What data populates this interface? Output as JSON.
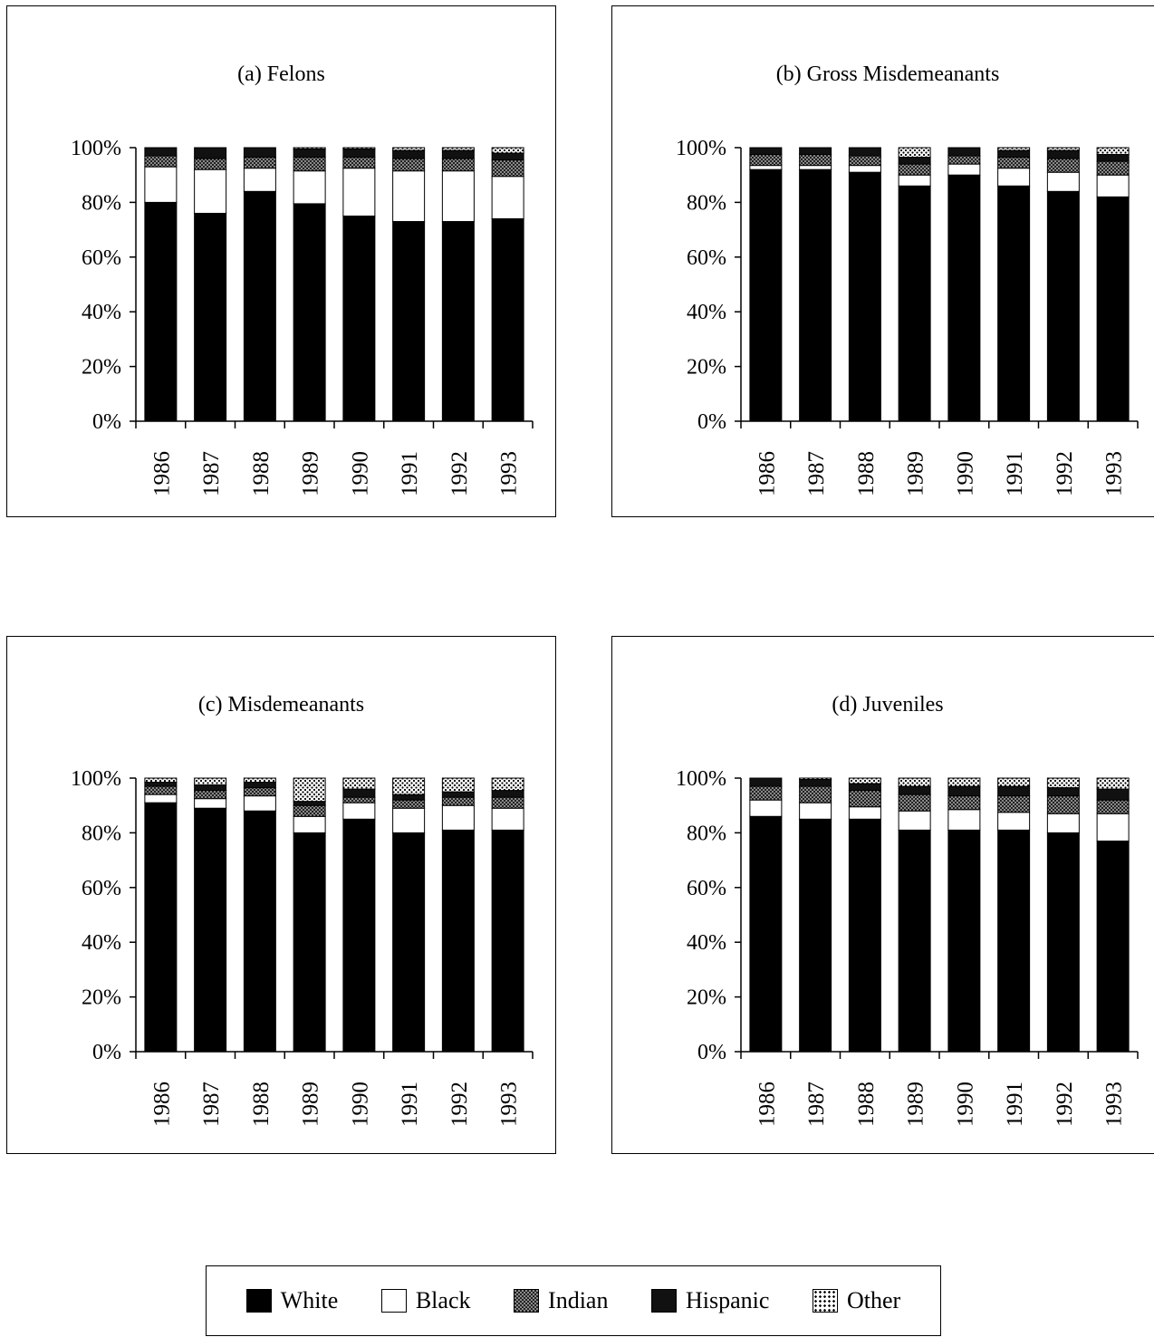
{
  "chart_data": [
    {
      "type": "bar",
      "stacked": true,
      "title": "(a) Felons",
      "categories": [
        "1986",
        "1987",
        "1988",
        "1989",
        "1990",
        "1991",
        "1992",
        "1993"
      ],
      "ylim": [
        0,
        100
      ],
      "yticks": [
        "0%",
        "20%",
        "40%",
        "60%",
        "80%",
        "100%"
      ],
      "series": [
        {
          "name": "White",
          "values": [
            80,
            76,
            84,
            79.5,
            75,
            73,
            73,
            74
          ]
        },
        {
          "name": "Black",
          "values": [
            13,
            16,
            8.5,
            12,
            17.5,
            18.5,
            18.5,
            15.5
          ]
        },
        {
          "name": "Indian",
          "values": [
            4,
            4,
            4,
            5,
            4,
            4.5,
            4.5,
            6
          ]
        },
        {
          "name": "Hispanic",
          "values": [
            3,
            4,
            3.5,
            3,
            3,
            3,
            3,
            2.5
          ]
        },
        {
          "name": "Other",
          "values": [
            0,
            0,
            0,
            0.5,
            0.5,
            1,
            1,
            2
          ]
        }
      ]
    },
    {
      "type": "bar",
      "stacked": true,
      "title": "(b) Gross Misdemeanants",
      "categories": [
        "1986",
        "1987",
        "1988",
        "1989",
        "1990",
        "1991",
        "1992",
        "1993"
      ],
      "ylim": [
        0,
        100
      ],
      "yticks": [
        "0%",
        "20%",
        "40%",
        "60%",
        "80%",
        "100%"
      ],
      "series": [
        {
          "name": "White",
          "values": [
            92,
            92,
            91,
            86,
            90,
            86,
            84,
            82
          ]
        },
        {
          "name": "Black",
          "values": [
            1.5,
            1.5,
            2.5,
            4,
            4,
            6.5,
            7,
            8
          ]
        },
        {
          "name": "Indian",
          "values": [
            4,
            4,
            3.5,
            4,
            3,
            4,
            5,
            5
          ]
        },
        {
          "name": "Hispanic",
          "values": [
            2.5,
            2.5,
            3,
            2.5,
            3,
            2.5,
            3,
            2.5
          ]
        },
        {
          "name": "Other",
          "values": [
            0,
            0,
            0,
            3.5,
            0,
            1,
            1,
            2.5
          ]
        }
      ]
    },
    {
      "type": "bar",
      "stacked": true,
      "title": "(c) Misdemeanants",
      "categories": [
        "1986",
        "1987",
        "1988",
        "1989",
        "1990",
        "1991",
        "1992",
        "1993"
      ],
      "ylim": [
        0,
        100
      ],
      "yticks": [
        "0%",
        "20%",
        "40%",
        "60%",
        "80%",
        "100%"
      ],
      "series": [
        {
          "name": "White",
          "values": [
            91,
            89,
            88,
            80,
            85,
            80,
            81,
            81
          ]
        },
        {
          "name": "Black",
          "values": [
            3,
            3.5,
            5.5,
            6,
            6,
            9,
            9,
            8
          ]
        },
        {
          "name": "Indian",
          "values": [
            3,
            3,
            3,
            4,
            2,
            3,
            3,
            4
          ]
        },
        {
          "name": "Hispanic",
          "values": [
            1.5,
            2,
            2,
            1.5,
            3,
            2,
            2,
            2.5
          ]
        },
        {
          "name": "Other",
          "values": [
            1.5,
            2.5,
            1.5,
            8.5,
            4,
            6,
            5,
            4.5
          ]
        }
      ]
    },
    {
      "type": "bar",
      "stacked": true,
      "title": "(d) Juveniles",
      "categories": [
        "1986",
        "1987",
        "1988",
        "1989",
        "1990",
        "1991",
        "1992",
        "1993"
      ],
      "ylim": [
        0,
        100
      ],
      "yticks": [
        "0%",
        "20%",
        "40%",
        "60%",
        "80%",
        "100%"
      ],
      "series": [
        {
          "name": "White",
          "values": [
            86,
            85,
            85,
            81,
            81,
            81,
            80,
            77
          ]
        },
        {
          "name": "Black",
          "values": [
            6,
            6,
            4.5,
            7,
            7.5,
            6.5,
            7,
            10
          ]
        },
        {
          "name": "Indian",
          "values": [
            5,
            6,
            6,
            6,
            5,
            6,
            6.5,
            5
          ]
        },
        {
          "name": "Hispanic",
          "values": [
            3,
            2.5,
            2.5,
            3,
            3.5,
            3.5,
            3,
            4
          ]
        },
        {
          "name": "Other",
          "values": [
            0,
            0.5,
            2,
            3,
            3,
            3,
            3.5,
            4
          ]
        }
      ]
    }
  ],
  "legend": {
    "items": [
      {
        "label": "White",
        "key": "White"
      },
      {
        "label": "Black",
        "key": "Black"
      },
      {
        "label": "Indian",
        "key": "Indian"
      },
      {
        "label": "Hispanic",
        "key": "Hispanic"
      },
      {
        "label": "Other",
        "key": "Other"
      }
    ]
  },
  "colors": {
    "White": "#000000",
    "Black": "#ffffff",
    "Indian": "#7a7a7a",
    "Hispanic": "#111111",
    "Other": "#cfcfcf"
  }
}
